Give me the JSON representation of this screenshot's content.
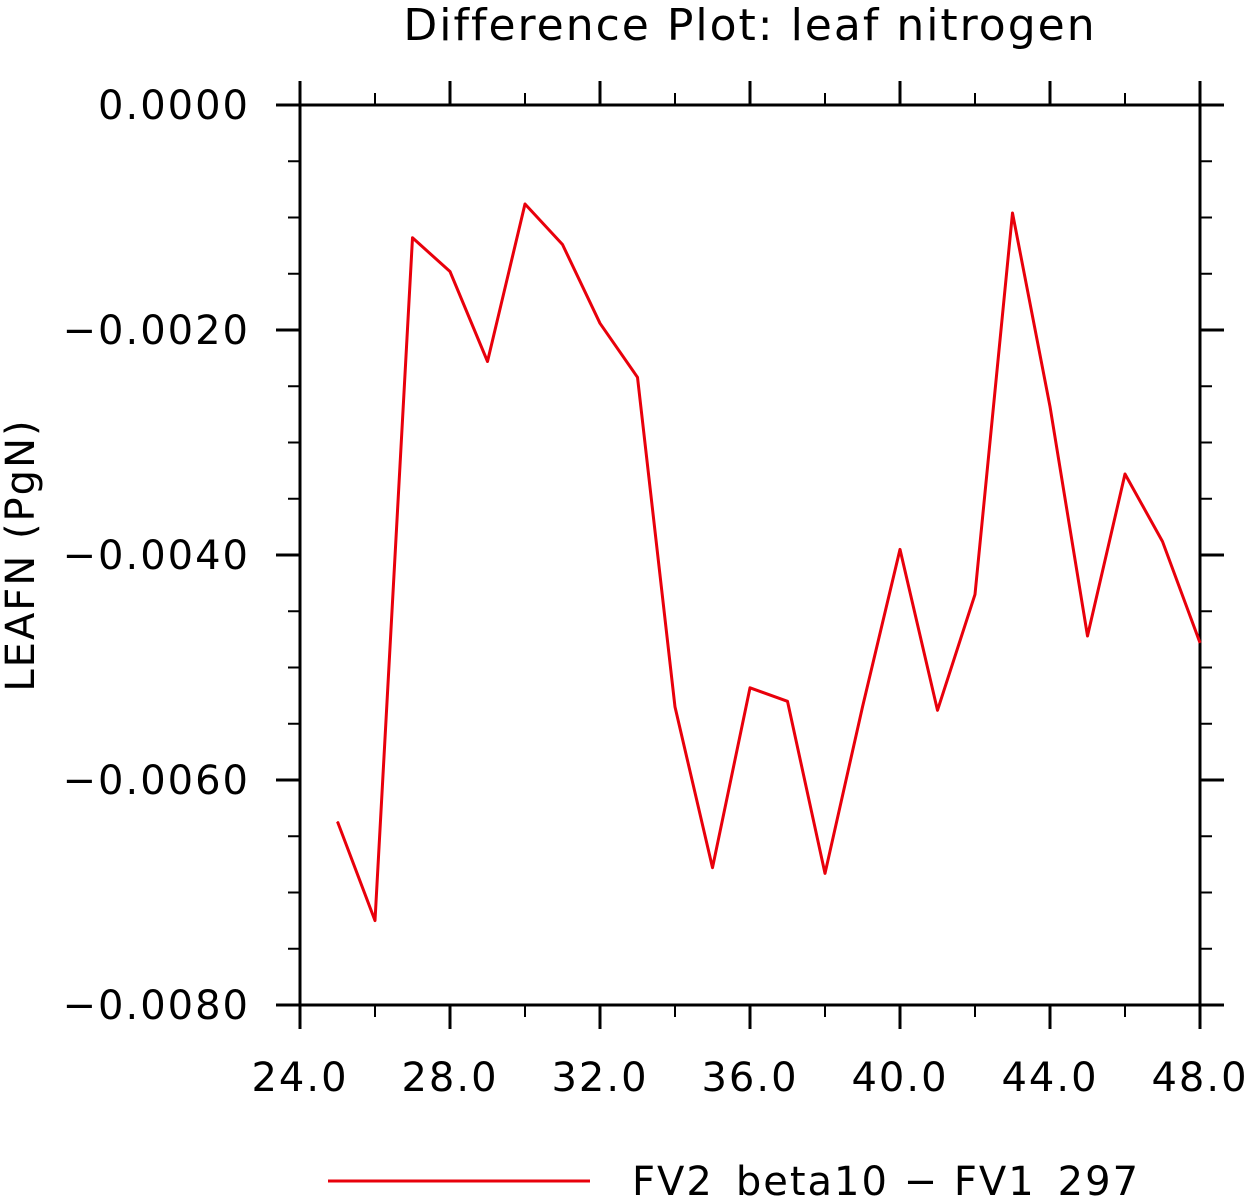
{
  "chart_data": {
    "type": "line",
    "title": "Difference Plot: leaf nitrogen",
    "xlabel": "",
    "ylabel": "LEAFN   (PgN)",
    "xlim": [
      24.0,
      48.0
    ],
    "ylim": [
      -0.008,
      0.0
    ],
    "x_ticks": [
      24.0,
      28.0,
      32.0,
      36.0,
      40.0,
      44.0,
      48.0
    ],
    "x_tick_labels": [
      "24.0",
      "28.0",
      "32.0",
      "36.0",
      "40.0",
      "44.0",
      "48.0"
    ],
    "x_minor_step": 2.0,
    "y_ticks": [
      0.0,
      -0.002,
      -0.004,
      -0.006,
      -0.008
    ],
    "y_tick_labels": [
      "0.0000",
      "−0.0020",
      "−0.0040",
      "−0.0060",
      "−0.0080"
    ],
    "y_minor_step": 0.0005,
    "grid": false,
    "legend_position": "bottom",
    "series": [
      {
        "name": "FV2_beta10 − FV1_297",
        "color": "#e8000b",
        "x": [
          25,
          26,
          27,
          28,
          29,
          30,
          31,
          32,
          33,
          34,
          35,
          36,
          37,
          38,
          39,
          40,
          41,
          42,
          43,
          44,
          45,
          46,
          47,
          48
        ],
        "y": [
          -0.00637,
          -0.00725,
          -0.00118,
          -0.00148,
          -0.00228,
          -0.00088,
          -0.00124,
          -0.00194,
          -0.00242,
          -0.00535,
          -0.00678,
          -0.00518,
          -0.0053,
          -0.00683,
          -0.00535,
          -0.00395,
          -0.00538,
          -0.00435,
          -0.00096,
          -0.00268,
          -0.00472,
          -0.00328,
          -0.00388,
          -0.00478
        ]
      }
    ]
  }
}
